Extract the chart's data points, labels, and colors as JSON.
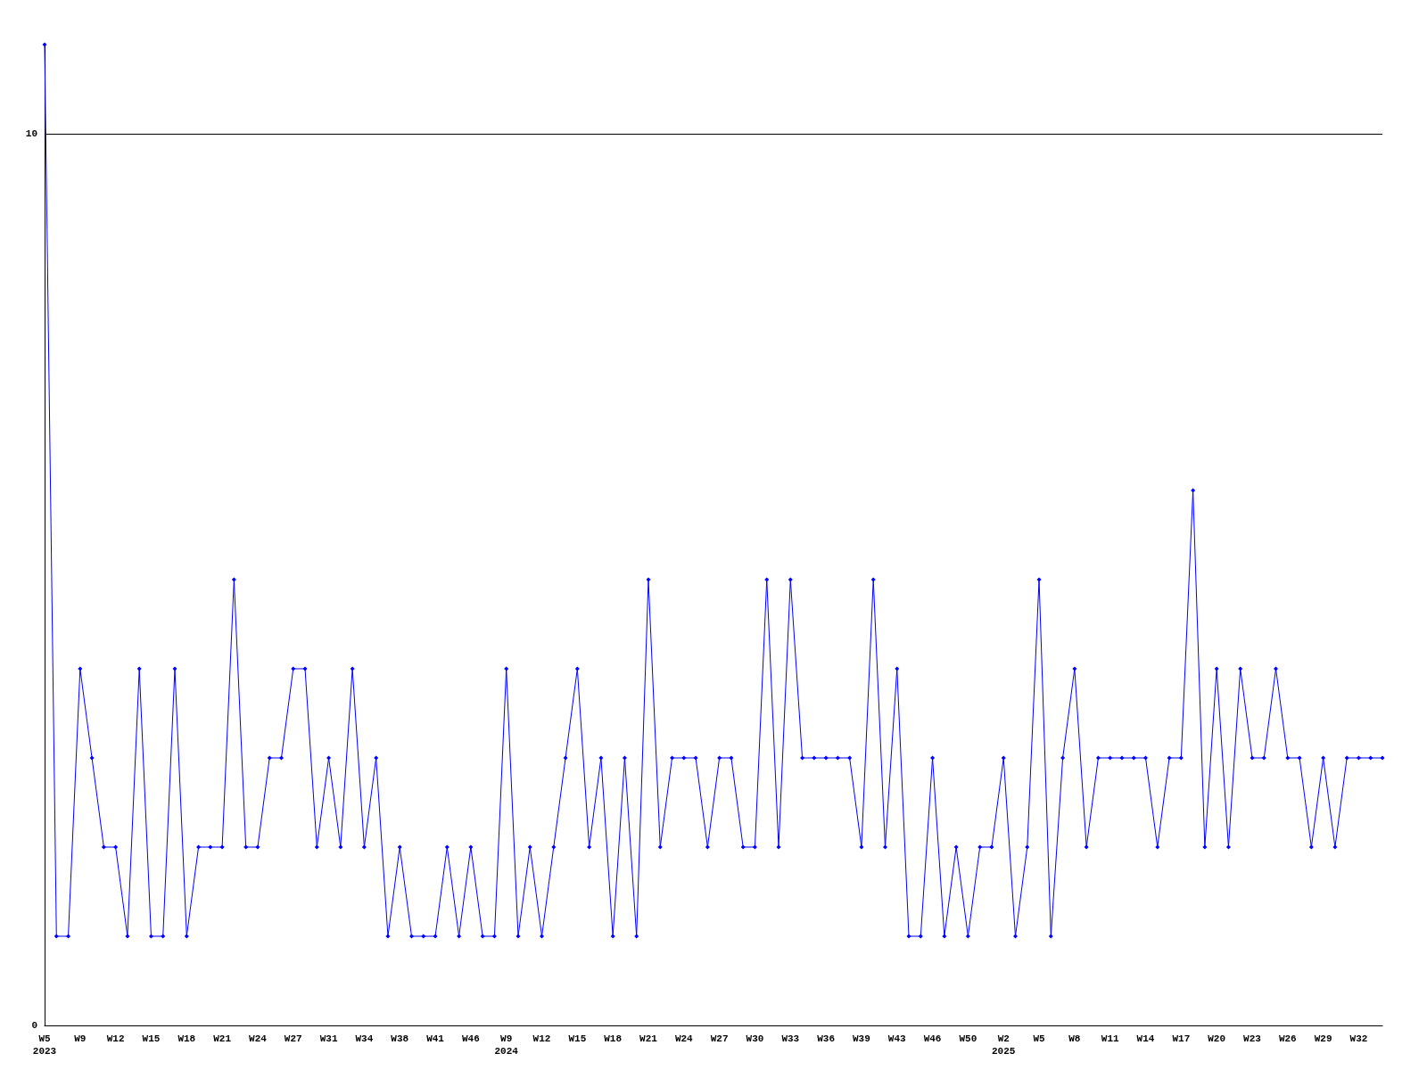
{
  "chart_data": {
    "type": "line",
    "categories": [
      "W5\n2023",
      null,
      null,
      "W9",
      null,
      null,
      "W12",
      null,
      null,
      "W15",
      null,
      null,
      "W18",
      null,
      null,
      "W21",
      null,
      null,
      "W24",
      null,
      null,
      "W27",
      null,
      null,
      "W31",
      null,
      null,
      "W34",
      null,
      null,
      "W38",
      null,
      null,
      "W41",
      null,
      null,
      "W46",
      null,
      null,
      "W9\n2024",
      null,
      null,
      "W12",
      null,
      null,
      "W15",
      null,
      null,
      "W18",
      null,
      null,
      "W21",
      null,
      null,
      "W24",
      null,
      null,
      "W27",
      null,
      null,
      "W30",
      null,
      null,
      "W33",
      null,
      null,
      "W36",
      null,
      null,
      "W39",
      null,
      null,
      "W43",
      null,
      null,
      "W46",
      null,
      null,
      "W50",
      null,
      null,
      "W2\n2025",
      null,
      null,
      "W5",
      null,
      null,
      "W8",
      null,
      null,
      "W11",
      null,
      null,
      "W14",
      null,
      null,
      "W17",
      null,
      null,
      "W20",
      null,
      null,
      "W23",
      null,
      null,
      "W26",
      null,
      null,
      "W29",
      null,
      null,
      "W32",
      null,
      null
    ],
    "series": [
      {
        "color": "#0000ff",
        "values": [
          11,
          1,
          1,
          4,
          3,
          2,
          2,
          1,
          4,
          1,
          1,
          4,
          1,
          2,
          2,
          2,
          5,
          2,
          2,
          3,
          3,
          4,
          4,
          2,
          3,
          2,
          4,
          2,
          3,
          1,
          2,
          1,
          1,
          1,
          2,
          1,
          2,
          1,
          1,
          4,
          1,
          2,
          1,
          2,
          3,
          4,
          2,
          3,
          1,
          3,
          1,
          5,
          2,
          3,
          3,
          3,
          2,
          3,
          3,
          2,
          2,
          5,
          2,
          5,
          3,
          3,
          3,
          3,
          3,
          2,
          5,
          2,
          4,
          1,
          1,
          3,
          1,
          2,
          1,
          2,
          2,
          3,
          1,
          2,
          5,
          1,
          3,
          4,
          2,
          3,
          3,
          3,
          3,
          3,
          2,
          3,
          3,
          6,
          2,
          4,
          2,
          4,
          3,
          3,
          4,
          3,
          3,
          2,
          3,
          2,
          3,
          3,
          3,
          3
        ]
      }
    ],
    "ylim": [
      0,
      11
    ],
    "yticks": [
      0,
      10
    ],
    "grid": "y",
    "marker": "diamond",
    "line_style": "solid"
  }
}
